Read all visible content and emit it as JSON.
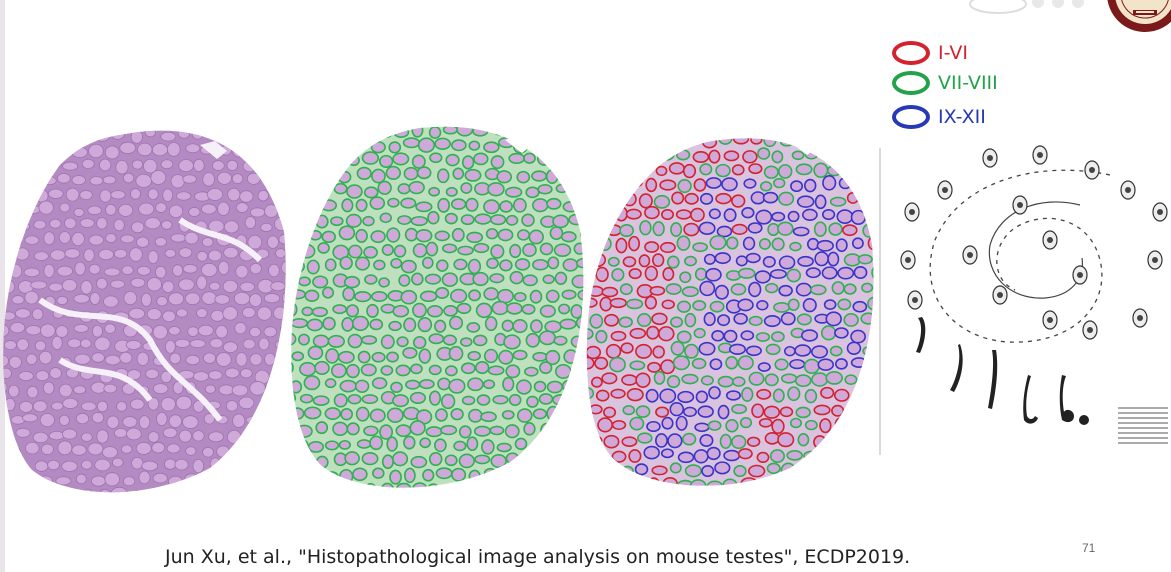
{
  "legend": {
    "items": [
      {
        "label": "I-VI",
        "color": "#d2232f"
      },
      {
        "label": "VII-VIII",
        "color": "#22a34a"
      },
      {
        "label": "IX-XII",
        "color": "#2739b6"
      }
    ]
  },
  "citation": "Jun Xu, et al., \"Histopathological image analysis on mouse testes\", ECDP2019.",
  "page_number": "71",
  "colors": {
    "tissue": "#b48ac3",
    "tubule": "#cfa9d9",
    "lumen": "#f3eef6",
    "green_outline": "#2fb150",
    "red_outline": "#d2232f",
    "blue_outline": "#3a35c8"
  }
}
